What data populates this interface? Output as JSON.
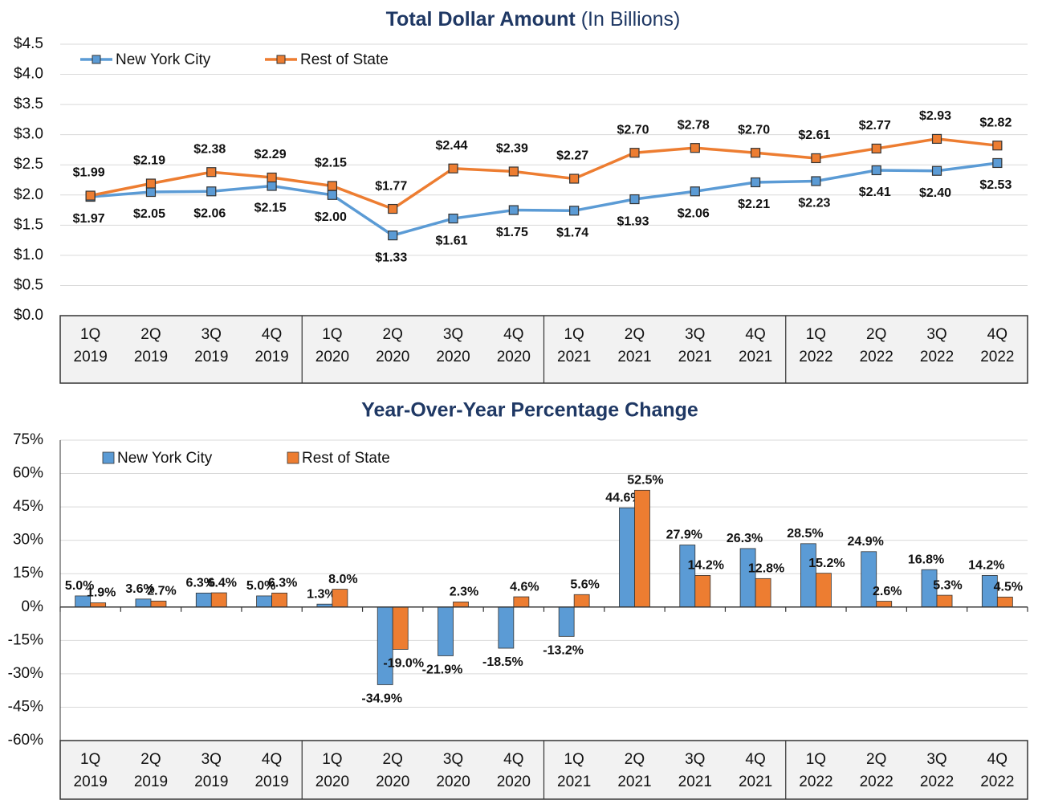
{
  "chart_data": [
    {
      "type": "line",
      "title": "Total Dollar Amount",
      "subtitle": "(In Billions)",
      "categories": [
        [
          "1Q",
          "2019"
        ],
        [
          "2Q",
          "2019"
        ],
        [
          "3Q",
          "2019"
        ],
        [
          "4Q",
          "2019"
        ],
        [
          "1Q",
          "2020"
        ],
        [
          "2Q",
          "2020"
        ],
        [
          "3Q",
          "2020"
        ],
        [
          "4Q",
          "2020"
        ],
        [
          "1Q",
          "2021"
        ],
        [
          "2Q",
          "2021"
        ],
        [
          "3Q",
          "2021"
        ],
        [
          "4Q",
          "2021"
        ],
        [
          "1Q",
          "2022"
        ],
        [
          "2Q",
          "2022"
        ],
        [
          "3Q",
          "2022"
        ],
        [
          "4Q",
          "2022"
        ]
      ],
      "series": [
        {
          "name": "New York City",
          "color": "#5b9bd5",
          "values": [
            1.97,
            2.05,
            2.06,
            2.15,
            2.0,
            1.33,
            1.61,
            1.75,
            1.74,
            1.93,
            2.06,
            2.21,
            2.23,
            2.41,
            2.4,
            2.53
          ],
          "value_labels": [
            "$1.97",
            "$2.05",
            "$2.06",
            "$2.15",
            "$2.00",
            "$1.33",
            "$1.61",
            "$1.75",
            "$1.74",
            "$1.93",
            "$2.06",
            "$2.21",
            "$2.23",
            "$2.41",
            "$2.40",
            "$2.53"
          ]
        },
        {
          "name": "Rest of State",
          "color": "#ed7d31",
          "values": [
            1.99,
            2.19,
            2.38,
            2.29,
            2.15,
            1.77,
            2.44,
            2.39,
            2.27,
            2.7,
            2.78,
            2.7,
            2.61,
            2.77,
            2.93,
            2.82
          ],
          "value_labels": [
            "$1.99",
            "$2.19",
            "$2.38",
            "$2.29",
            "$2.15",
            "$1.77",
            "$2.44",
            "$2.39",
            "$2.27",
            "$2.70",
            "$2.78",
            "$2.70",
            "$2.61",
            "$2.77",
            "$2.93",
            "$2.82"
          ]
        }
      ],
      "ylim": [
        0,
        4.5
      ],
      "yticks": [
        {
          "value": 0,
          "label": "$0.0"
        },
        {
          "value": 0.5,
          "label": "$0.5"
        },
        {
          "value": 1,
          "label": "$1.0"
        },
        {
          "value": 1.5,
          "label": "$1.5"
        },
        {
          "value": 2,
          "label": "$2.0"
        },
        {
          "value": 2.5,
          "label": "$2.5"
        },
        {
          "value": 3,
          "label": "$3.0"
        },
        {
          "value": 3.5,
          "label": "$3.5"
        },
        {
          "value": 4,
          "label": "$4.0"
        },
        {
          "value": 4.5,
          "label": "$4.5"
        }
      ],
      "grid": true,
      "legend": "upper left"
    },
    {
      "type": "bar",
      "title": "Year-Over-Year Percentage Change",
      "categories": [
        [
          "1Q",
          "2019"
        ],
        [
          "2Q",
          "2019"
        ],
        [
          "3Q",
          "2019"
        ],
        [
          "4Q",
          "2019"
        ],
        [
          "1Q",
          "2020"
        ],
        [
          "2Q",
          "2020"
        ],
        [
          "3Q",
          "2020"
        ],
        [
          "4Q",
          "2020"
        ],
        [
          "1Q",
          "2021"
        ],
        [
          "2Q",
          "2021"
        ],
        [
          "3Q",
          "2021"
        ],
        [
          "4Q",
          "2021"
        ],
        [
          "1Q",
          "2022"
        ],
        [
          "2Q",
          "2022"
        ],
        [
          "3Q",
          "2022"
        ],
        [
          "4Q",
          "2022"
        ]
      ],
      "series": [
        {
          "name": "New York City",
          "color": "#5b9bd5",
          "values": [
            5.0,
            3.6,
            6.3,
            5.0,
            1.3,
            -34.9,
            -21.9,
            -18.5,
            -13.2,
            44.6,
            27.9,
            26.3,
            28.5,
            24.9,
            16.8,
            14.2
          ],
          "value_labels": [
            "5.0%",
            "3.6%",
            "6.3%",
            "5.0%",
            "1.3%",
            "-34.9%",
            "-21.9%",
            "-18.5%",
            "-13.2%",
            "44.6%",
            "27.9%",
            "26.3%",
            "28.5%",
            "24.9%",
            "16.8%",
            "14.2%"
          ]
        },
        {
          "name": "Rest of State",
          "color": "#ed7d31",
          "values": [
            1.9,
            2.7,
            6.4,
            6.3,
            8.0,
            -19.0,
            2.3,
            4.6,
            5.6,
            52.5,
            14.2,
            12.8,
            15.2,
            2.6,
            5.3,
            4.5
          ],
          "value_labels": [
            "1.9%",
            "2.7%",
            "6.4%",
            "6.3%",
            "8.0%",
            "-19.0%",
            "2.3%",
            "4.6%",
            "5.6%",
            "52.5%",
            "14.2%",
            "12.8%",
            "15.2%",
            "2.6%",
            "5.3%",
            "4.5%"
          ]
        }
      ],
      "ylim": [
        -60,
        75
      ],
      "yticks": [
        {
          "value": 75,
          "label": "75%"
        },
        {
          "value": 60,
          "label": "60%"
        },
        {
          "value": 45,
          "label": "45%"
        },
        {
          "value": 30,
          "label": "30%"
        },
        {
          "value": 15,
          "label": "15%"
        },
        {
          "value": 0,
          "label": "0%"
        },
        {
          "value": -15,
          "label": "-15%"
        },
        {
          "value": -30,
          "label": "-30%"
        },
        {
          "value": -45,
          "label": "-45%"
        },
        {
          "value": -60,
          "label": "-60%"
        }
      ],
      "grid": true,
      "legend": "upper left"
    }
  ]
}
